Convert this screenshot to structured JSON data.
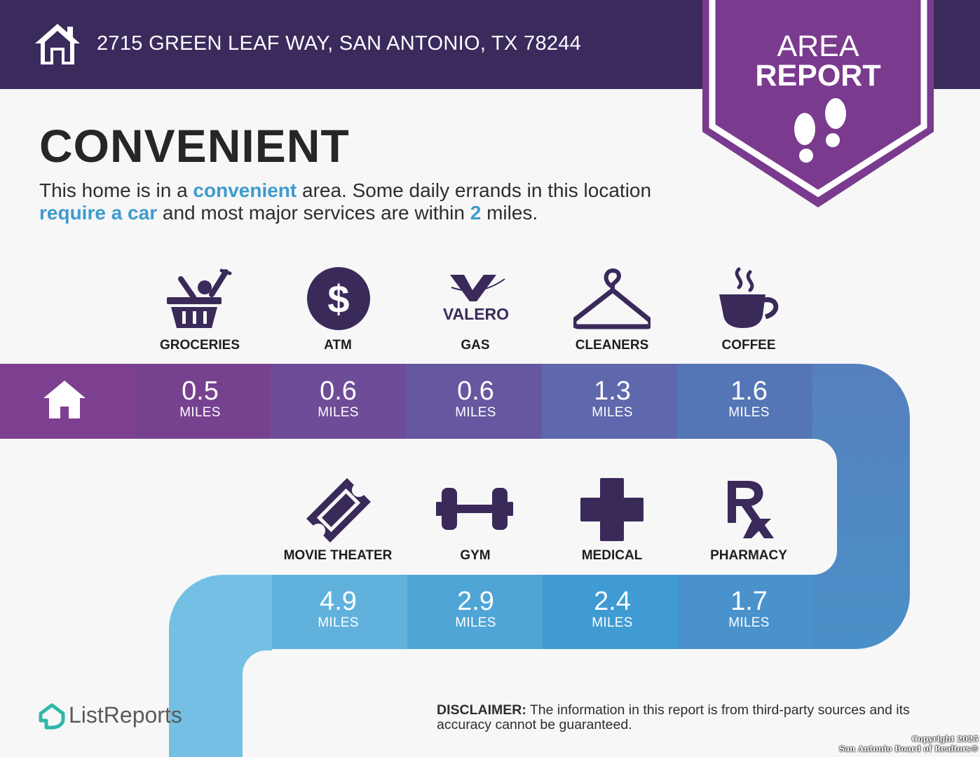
{
  "header": {
    "address": "2715 GREEN LEAF WAY, SAN ANTONIO, TX 78244",
    "home_icon": "home-icon"
  },
  "badge": {
    "line1": "AREA",
    "line2": "REPORT",
    "icon": "footsteps-icon"
  },
  "title": "CONVENIENT",
  "summary": {
    "part1": "This home is in a ",
    "hl1": "convenient",
    "part2": " area. Some daily errands in this location ",
    "hl2": "require a car",
    "part3": " and most major services are within ",
    "hl3": "2",
    "part4": " miles."
  },
  "row1": [
    {
      "label": "GROCERIES",
      "value": "0.5",
      "unit": "MILES",
      "icon": "grocery-basket-icon"
    },
    {
      "label": "ATM",
      "value": "0.6",
      "unit": "MILES",
      "icon": "dollar-icon"
    },
    {
      "label": "GAS",
      "value": "0.6",
      "unit": "MILES",
      "icon": "valero-logo-icon",
      "logo_text": "VALERO"
    },
    {
      "label": "CLEANERS",
      "value": "1.3",
      "unit": "MILES",
      "icon": "hanger-icon"
    },
    {
      "label": "COFFEE",
      "value": "1.6",
      "unit": "MILES",
      "icon": "coffee-cup-icon"
    }
  ],
  "row2": [
    {
      "label": "MOVIE THEATER",
      "value": "4.9",
      "unit": "MILES",
      "icon": "ticket-icon"
    },
    {
      "label": "GYM",
      "value": "2.9",
      "unit": "MILES",
      "icon": "dumbbell-icon"
    },
    {
      "label": "MEDICAL",
      "value": "2.4",
      "unit": "MILES",
      "icon": "medical-cross-icon"
    },
    {
      "label": "PHARMACY",
      "value": "1.7",
      "unit": "MILES",
      "icon": "rx-icon"
    }
  ],
  "footer": {
    "brand": "ListReports",
    "disclaimer_label": "DISCLAIMER:",
    "disclaimer_text": " The information in this report is from third-party sources and its accuracy cannot be guaranteed.",
    "copyright_line1": "Copyright 2025",
    "copyright_line2": "San Antonio Board of Realtors®"
  },
  "colors": {
    "header": "#3b2a5c",
    "badge": "#7a3a8e",
    "accent": "#3d9bcd",
    "icon": "#3a2a5a"
  }
}
